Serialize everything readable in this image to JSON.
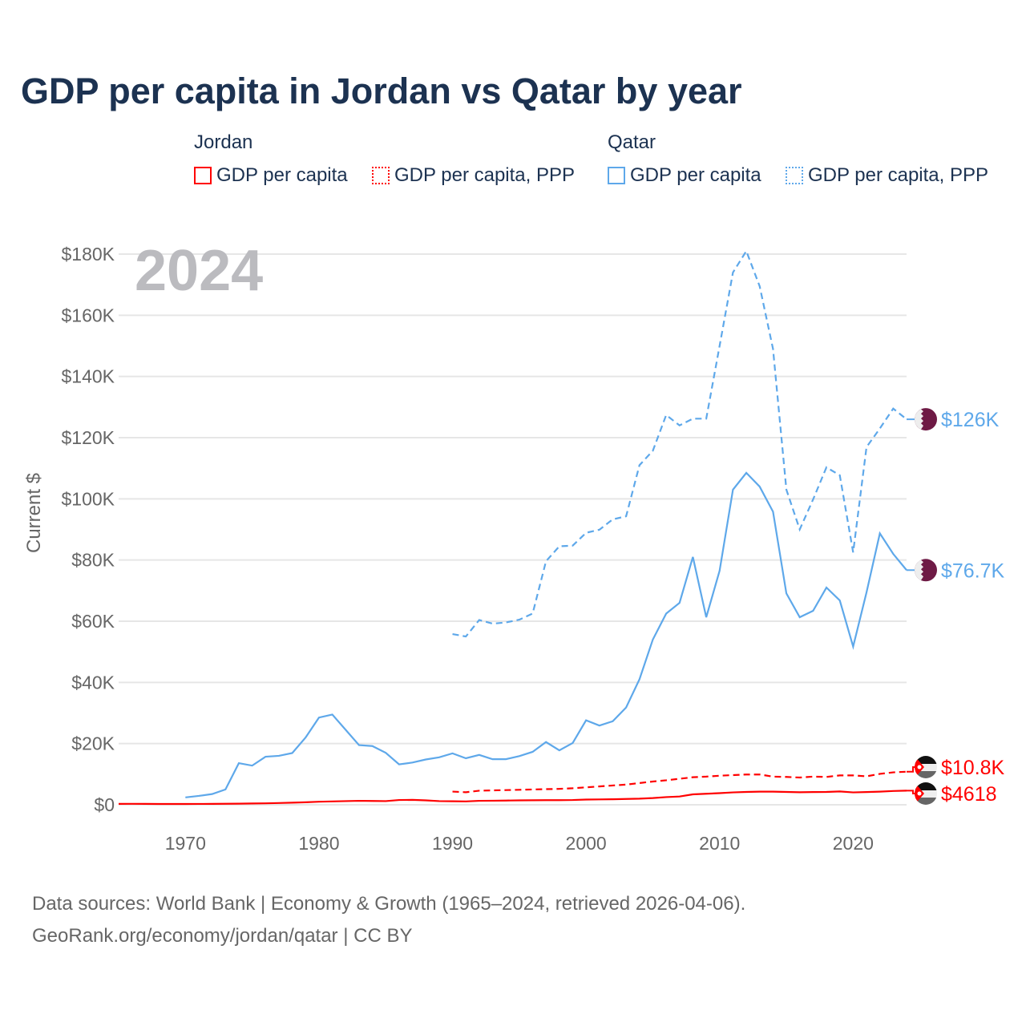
{
  "title": "GDP per capita in Jordan vs Qatar by year",
  "legend": {
    "jordan": {
      "name": "Jordan",
      "gdp": "GDP per capita",
      "ppp": "GDP per capita, PPP"
    },
    "qatar": {
      "name": "Qatar",
      "gdp": "GDP per capita",
      "ppp": "GDP per capita, PPP"
    }
  },
  "footer": {
    "line1": "Data sources: World Bank | Economy & Growth (1965–2024, retrieved 2026-04-06).",
    "line2": "GeoRank.org/economy/jordan/qatar | CC BY"
  },
  "colors": {
    "jordan": "#ff0000",
    "qatar": "#5ea8ea",
    "qatar_flag": "#6e1a45"
  },
  "chart_data": {
    "type": "line",
    "title": "GDP per capita in Jordan vs Qatar by year",
    "year_label": "2024",
    "ylabel": "Current $",
    "xlabel": "",
    "ylim": [
      0,
      180000
    ],
    "xlim": [
      1965,
      2024
    ],
    "yticks": [
      0,
      20000,
      40000,
      60000,
      80000,
      100000,
      120000,
      140000,
      160000,
      180000
    ],
    "ytick_labels": [
      "$0",
      "$20K",
      "$40K",
      "$60K",
      "$80K",
      "$100K",
      "$120K",
      "$140K",
      "$160K",
      "$180K"
    ],
    "xticks": [
      1970,
      1980,
      1990,
      2000,
      2010,
      2020
    ],
    "xtick_labels": [
      "1970",
      "1980",
      "1990",
      "2000",
      "2010",
      "2020"
    ],
    "grid": true,
    "series": [
      {
        "name": "Jordan GDP per capita",
        "country": "jordan",
        "dashed": false,
        "end_label": "$4618",
        "start": 1965,
        "values": [
          300,
          310,
          290,
          260,
          260,
          270,
          280,
          290,
          320,
          370,
          420,
          480,
          570,
          680,
          820,
          1000,
          1100,
          1200,
          1300,
          1250,
          1200,
          1550,
          1600,
          1450,
          1200,
          1150,
          1100,
          1300,
          1320,
          1380,
          1450,
          1480,
          1500,
          1510,
          1550,
          1700,
          1750,
          1800,
          1900,
          2000,
          2200,
          2500,
          2700,
          3400,
          3600,
          3800,
          4050,
          4200,
          4300,
          4300,
          4200,
          4100,
          4150,
          4200,
          4350,
          4050,
          4150,
          4300,
          4500,
          4618
        ]
      },
      {
        "name": "Jordan GDP per capita, PPP",
        "country": "jordan",
        "dashed": true,
        "end_label": "$10.8K",
        "start": 1990,
        "values": [
          4300,
          4100,
          4600,
          4700,
          4800,
          4900,
          5000,
          5100,
          5200,
          5400,
          5700,
          6000,
          6300,
          6600,
          7100,
          7600,
          8000,
          8500,
          9000,
          9200,
          9500,
          9700,
          9900,
          9900,
          9200,
          9100,
          8900,
          9200,
          9100,
          9600,
          9600,
          9300,
          10100,
          10600,
          10800
        ]
      },
      {
        "name": "Qatar GDP per capita",
        "country": "qatar",
        "dashed": false,
        "end_label": "$76.7K",
        "start": 1970,
        "values": [
          2400,
          2900,
          3500,
          5000,
          13600,
          12800,
          15700,
          16000,
          16900,
          22000,
          28500,
          29500,
          24500,
          19500,
          19200,
          17000,
          13200,
          13800,
          14800,
          15500,
          16800,
          15200,
          16300,
          14900,
          14900,
          15900,
          17300,
          20500,
          17800,
          20200,
          27600,
          25900,
          27300,
          31800,
          41000,
          54000,
          62500,
          66000,
          81000,
          61300,
          76500,
          103000,
          108500,
          104000,
          95800,
          69100,
          61300,
          63400,
          71000,
          66800,
          51700,
          69400,
          88700,
          82000,
          76700
        ]
      },
      {
        "name": "Qatar GDP per capita, PPP",
        "country": "qatar",
        "dashed": true,
        "end_label": "$126K",
        "start": 1990,
        "values": [
          55800,
          55000,
          60400,
          59200,
          59600,
          60500,
          62500,
          79600,
          84500,
          84700,
          88900,
          89900,
          93300,
          94300,
          111000,
          115700,
          127400,
          124000,
          126200,
          126200,
          150000,
          174000,
          181000,
          169500,
          149000,
          103000,
          90000,
          99800,
          110300,
          107700,
          82500,
          116900,
          123000,
          129500,
          126000
        ]
      }
    ]
  }
}
